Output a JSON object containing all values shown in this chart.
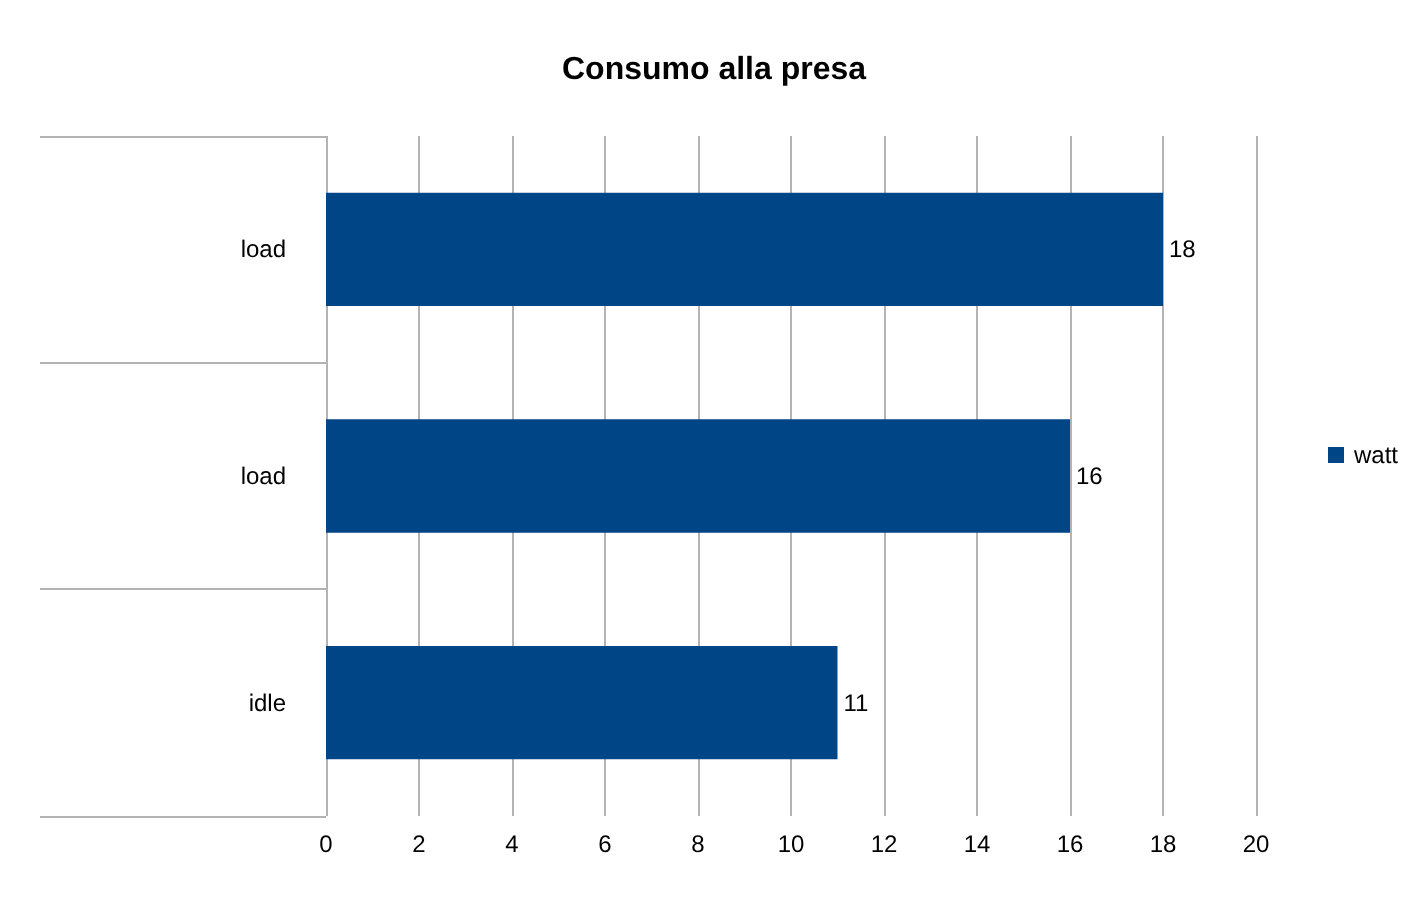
{
  "chart_data": {
    "type": "bar",
    "orientation": "horizontal",
    "title": "Consumo alla presa",
    "categories": [
      "load",
      "load",
      "idle"
    ],
    "series": [
      {
        "name": "watt",
        "color": "#004586",
        "values": [
          18,
          16,
          11
        ]
      }
    ],
    "xlim": [
      0,
      20
    ],
    "xticks": [
      0,
      2,
      4,
      6,
      8,
      10,
      12,
      14,
      16,
      18,
      20
    ],
    "grid": "x",
    "legend": "right",
    "data_labels": true
  }
}
